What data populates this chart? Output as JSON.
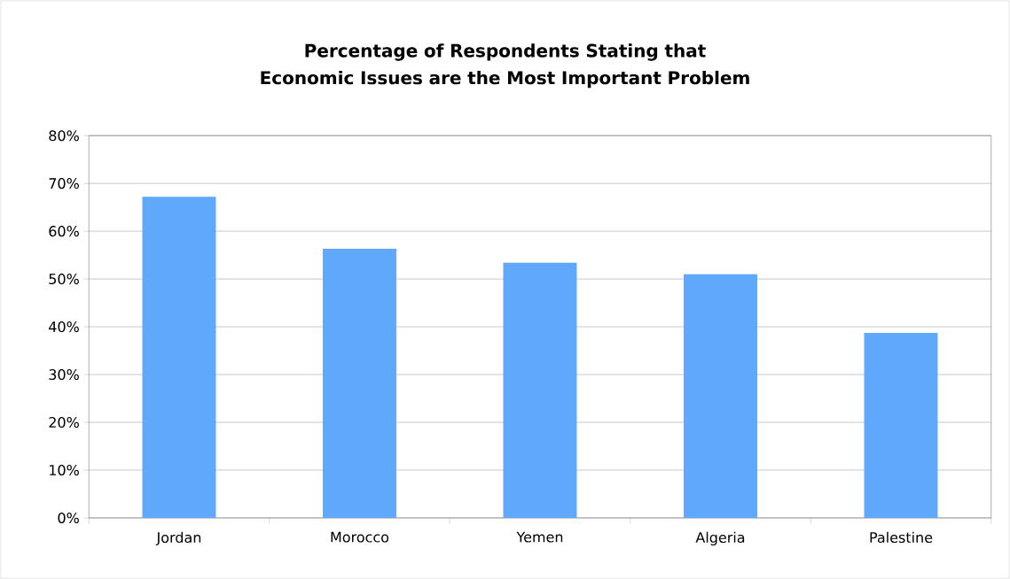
{
  "chart_data": {
    "type": "bar",
    "title": "Percentage of Respondents Stating that Economic Issues are the Most Important Problem",
    "categories": [
      "Jordan",
      "Morocco",
      "Yemen",
      "Algeria",
      "Palestine"
    ],
    "values": [
      67.2,
      56.3,
      53.4,
      51.0,
      38.7
    ],
    "color": "#60a8fc",
    "ylim": [
      0,
      80
    ],
    "yticks": [
      {
        "value": 0,
        "label": "0%"
      },
      {
        "value": 10,
        "label": "10%"
      },
      {
        "value": 20,
        "label": "20%"
      },
      {
        "value": 30,
        "label": "30%"
      },
      {
        "value": 40,
        "label": "40%"
      },
      {
        "value": 50,
        "label": "50%"
      },
      {
        "value": 60,
        "label": "60%"
      },
      {
        "value": 70,
        "label": "70%"
      },
      {
        "value": 80,
        "label": "80%"
      }
    ],
    "grid": "y"
  }
}
